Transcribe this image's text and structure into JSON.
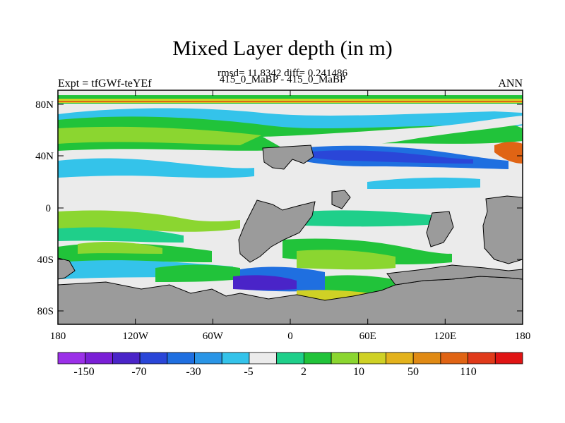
{
  "title": "Mixed Layer depth (in m)",
  "stats_line": "rmsd= 11.8342 diff= 0.241486",
  "case_line": "415_0_MaBP - 415_0_MaBP",
  "left_label": "Expt = tfGWf-teYEf",
  "right_label": "ANN",
  "y_ticks": [
    "80N",
    "40N",
    "0",
    "40S",
    "80S"
  ],
  "x_ticks": [
    "180",
    "120W",
    "60W",
    "0",
    "60E",
    "120E",
    "180"
  ],
  "colorbar": {
    "colors": [
      "#9b30e8",
      "#7a1fd6",
      "#4a24c8",
      "#2a46d8",
      "#1f6fe0",
      "#2a95e6",
      "#34c3ea",
      "#ebebeb",
      "#1fcf8a",
      "#21c33a",
      "#8bd630",
      "#cfd125",
      "#e3b21c",
      "#e08a14",
      "#e06414",
      "#e03a1a",
      "#e01414"
    ],
    "labels": [
      "-150",
      "-70",
      "-30",
      "-5",
      "2",
      "10",
      "50",
      "110"
    ]
  },
  "chart_data": {
    "type": "heatmap",
    "title": "Mixed Layer depth (in m)",
    "xlim": [
      "180",
      "180"
    ],
    "ylim": [
      "90S",
      "90N"
    ],
    "x_ticks": [
      "180",
      "120W",
      "60W",
      "0",
      "60E",
      "120E",
      "180"
    ],
    "y_ticks": [
      "80N",
      "40N",
      "0",
      "40S",
      "80S"
    ],
    "legend_levels": [
      "-150",
      "-70",
      "-30",
      "-5",
      "2",
      "10",
      "50",
      "110"
    ]
  }
}
